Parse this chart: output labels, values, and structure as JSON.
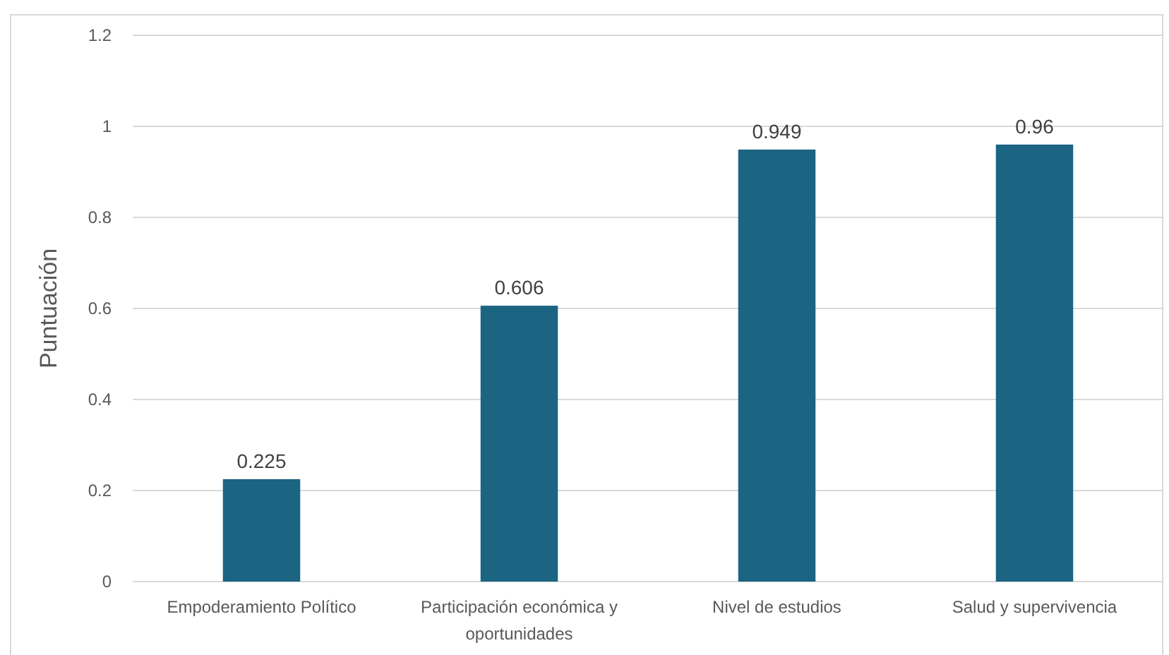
{
  "chart_data": {
    "type": "bar",
    "categories": [
      "Empoderamiento Político",
      "Participación económica y oportunidades",
      "Nivel de estudios",
      "Salud y supervivencia"
    ],
    "values": [
      0.225,
      0.606,
      0.949,
      0.96
    ],
    "color": "#1b6482",
    "ylabel": "Puntuación",
    "ylim": [
      0,
      1.2
    ],
    "yticks": [
      0,
      0.2,
      0.4,
      0.6,
      0.8,
      1,
      1.2
    ],
    "grid": "y",
    "data_labels": true
  }
}
